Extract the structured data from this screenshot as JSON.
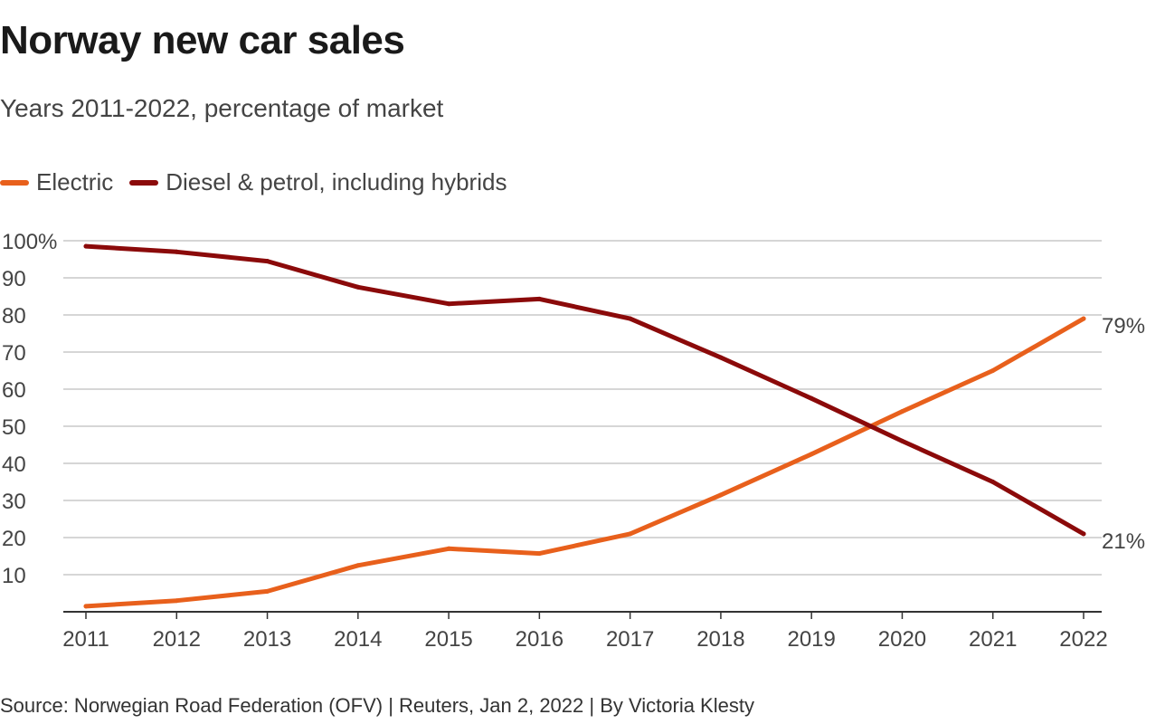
{
  "title": "Norway new car sales",
  "subtitle": "Years 2011-2022, percentage of market",
  "source": "Source: Norwegian Road Federation (OFV) | Reuters, Jan 2, 2022 | By Victoria Klesty",
  "colors": {
    "electric": "#e8601c",
    "diesel_petrol": "#8b0a0a",
    "grid": "#c8c8c8",
    "axis": "#333333"
  },
  "chart_data": {
    "type": "line",
    "title": "Norway new car sales",
    "subtitle": "Years 2011-2022, percentage of market",
    "xlabel": "",
    "ylabel": "",
    "x": [
      "2011",
      "2012",
      "2013",
      "2014",
      "2015",
      "2016",
      "2017",
      "2018",
      "2019",
      "2020",
      "2021",
      "2022"
    ],
    "ylim": [
      0,
      100
    ],
    "yticks": [
      {
        "value": 100,
        "label": "100%"
      },
      {
        "value": 90,
        "label": "90"
      },
      {
        "value": 80,
        "label": "80"
      },
      {
        "value": 70,
        "label": "70"
      },
      {
        "value": 60,
        "label": "60"
      },
      {
        "value": 50,
        "label": "50"
      },
      {
        "value": 40,
        "label": "40"
      },
      {
        "value": 30,
        "label": "30"
      },
      {
        "value": 20,
        "label": "20"
      },
      {
        "value": 10,
        "label": "10"
      }
    ],
    "grid": true,
    "legend_position": "top-left",
    "series": [
      {
        "key": "electric",
        "name": "Electric",
        "color": "#e8601c",
        "values": [
          1.5,
          3,
          5.5,
          12.5,
          17,
          15.7,
          21,
          31.5,
          42.5,
          54,
          65,
          79
        ],
        "end_label": "79%"
      },
      {
        "key": "diesel_petrol",
        "name": "Diesel & petrol, including hybrids",
        "color": "#8b0a0a",
        "values": [
          98.5,
          97,
          94.5,
          87.5,
          83,
          84.3,
          79,
          68.5,
          57.5,
          46,
          35,
          21
        ],
        "end_label": "21%"
      }
    ]
  }
}
